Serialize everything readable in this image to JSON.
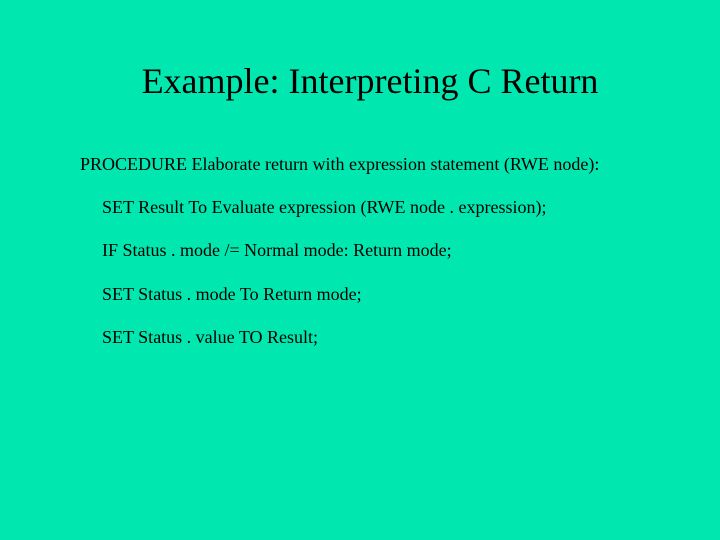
{
  "slide": {
    "title": "Example: Interpreting C Return",
    "procedure_line": "PROCEDURE Elaborate return with expression statement (RWE node):",
    "lines": [
      "SET Result To Evaluate expression (RWE node . expression);",
      "IF Status . mode /= Normal mode: Return mode;",
      "SET Status . mode To Return mode;",
      "SET Status . value TO Result;"
    ],
    "background_color": "#00e8b0",
    "text_color": "#000000",
    "title_fontsize": 36,
    "body_fontsize": 18,
    "font_family": "Times New Roman"
  }
}
